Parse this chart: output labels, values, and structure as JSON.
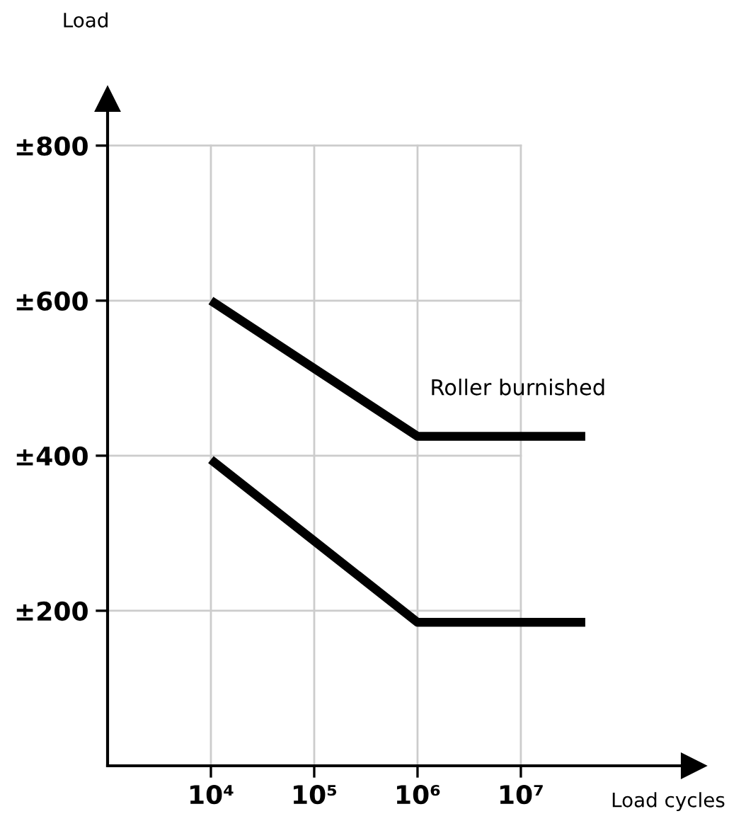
{
  "chart_data": {
    "type": "line",
    "xlabel": "Load cycles",
    "ylabel": "Load",
    "log": "x",
    "xlim": [
      1000,
      470000000
    ],
    "ylim": [
      0,
      860
    ],
    "xticks": [
      {
        "value": 10000,
        "label": "10⁴"
      },
      {
        "value": 100000,
        "label": "10⁵"
      },
      {
        "value": 1000000,
        "label": "10⁶"
      },
      {
        "value": 10000000,
        "label": "10⁷"
      }
    ],
    "yticks": [
      {
        "value": 200,
        "label": "±200"
      },
      {
        "value": 400,
        "label": "±400"
      },
      {
        "value": 600,
        "label": "±600"
      },
      {
        "value": 800,
        "label": "±800"
      }
    ],
    "grid": true,
    "marker": "none",
    "line_style": "solid",
    "series": [
      {
        "color": "#000000",
        "x": [
          10000,
          1000000,
          42000000
        ],
        "values": [
          600,
          425,
          425
        ]
      },
      {
        "color": "#000000",
        "x": [
          10000,
          1000000,
          42000000
        ],
        "values": [
          395,
          185,
          185
        ]
      }
    ],
    "annotations": [
      "Roller burnished"
    ]
  }
}
